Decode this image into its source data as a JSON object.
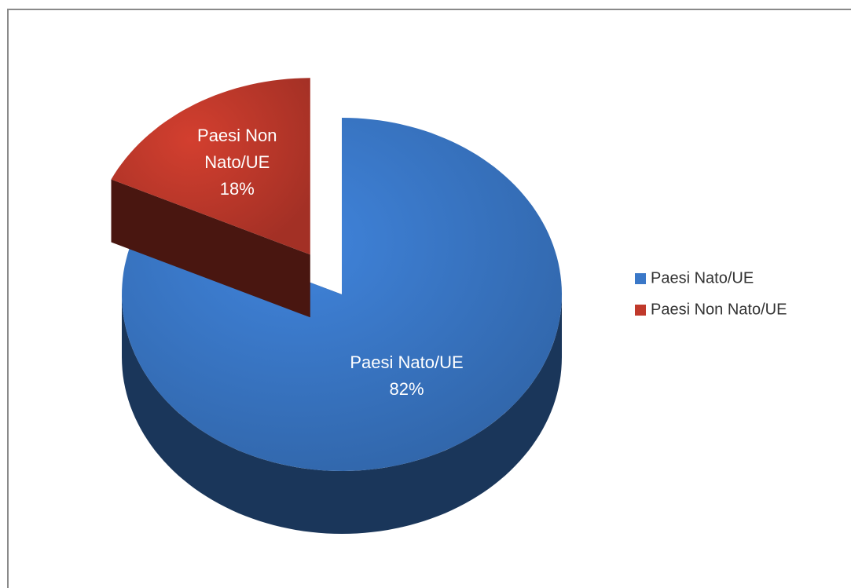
{
  "chart_data": {
    "type": "pie",
    "categories": [
      "Paesi Nato/UE",
      "Paesi Non Nato/UE"
    ],
    "values": [
      82,
      18
    ],
    "value_labels": [
      "82%",
      "18%"
    ],
    "colors": [
      "#3a78c8",
      "#c0392b"
    ],
    "explode": [
      false,
      true
    ],
    "legend": "right"
  }
}
